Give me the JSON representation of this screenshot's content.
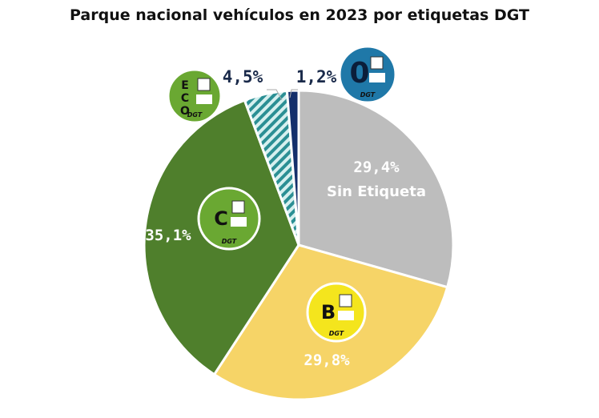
{
  "chart_data": {
    "type": "pie",
    "title": "Parque nacional vehículos en 2023 por etiquetas DGT",
    "slices": [
      {
        "label": "Sin Etiqueta",
        "value": 29.4,
        "value_label": "29,4%",
        "color": "#bdbdbd",
        "badge": ""
      },
      {
        "label": "B",
        "value": 29.8,
        "value_label": "29,8%",
        "color": "#f6d467",
        "badge": "B"
      },
      {
        "label": "C",
        "value": 35.1,
        "value_label": "35,1%",
        "color": "#4f7f2c",
        "badge": "C"
      },
      {
        "label": "ECO",
        "value": 4.5,
        "value_label": "4,5%",
        "color": "#3aa3a6",
        "badge": "ECO",
        "pattern": "hatched"
      },
      {
        "label": "0",
        "value": 1.2,
        "value_label": "1,2%",
        "color": "#142f6b",
        "badge": "0"
      }
    ],
    "start": "top",
    "direction": "clockwise",
    "badge_brand": "DGT"
  }
}
